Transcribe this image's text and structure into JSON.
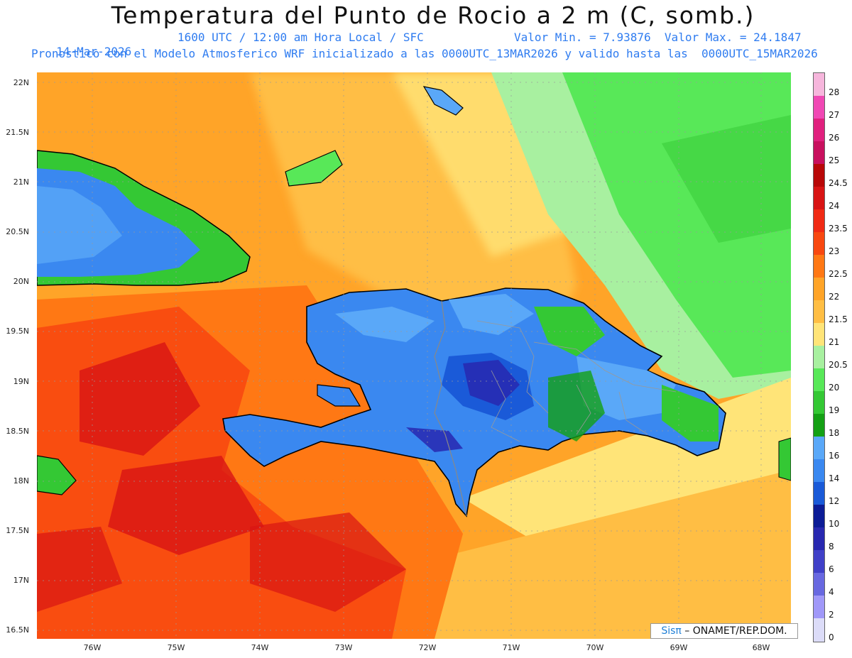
{
  "title": "Temperatura del Punto de Rocio a 2 m (C, somb.)",
  "subtitle": {
    "date": "14-Mar-2026",
    "time": "1600 UTC / 12:00 am Hora Local / SFC",
    "minmax": "Valor Min. = 7.93876  Valor Max. = 24.1847",
    "model": "Pronostico con el Modelo Atmosferico WRF inicializado a las 0000UTC_13MAR2026 y valido hasta las  0000UTC_15MAR2026"
  },
  "axes": {
    "y_labels": [
      "22N",
      "21.5N",
      "21N",
      "20.5N",
      "20N",
      "19.5N",
      "19N",
      "18.5N",
      "18N",
      "17.5N",
      "17N",
      "16.5N"
    ],
    "x_labels": [
      "76W",
      "75W",
      "74W",
      "73W",
      "72W",
      "71W",
      "70W",
      "69W",
      "68W"
    ]
  },
  "colorbar": {
    "labels": [
      "28",
      "27",
      "26",
      "25",
      "24.5",
      "24",
      "23.5",
      "23",
      "22.5",
      "22",
      "21.5",
      "21",
      "20.5",
      "20",
      "19",
      "18",
      "16",
      "14",
      "12",
      "10",
      "8",
      "6",
      "4",
      "2",
      "0"
    ],
    "colors": [
      "#f6b6dc",
      "#f048b4",
      "#e0207e",
      "#c8105e",
      "#b80808",
      "#d81414",
      "#f02a14",
      "#f84810",
      "#ff7814",
      "#ffa428",
      "#ffbe44",
      "#ffe478",
      "#a8f0a0",
      "#58e858",
      "#34c834",
      "#14a014",
      "#5aa8f8",
      "#3a88f0",
      "#1a5ad8",
      "#0c1c96",
      "#2828b0",
      "#4040c8",
      "#6868e0",
      "#a098f8",
      "#dcdcf8"
    ]
  },
  "credit": {
    "logo": "Sisπ",
    "text": " – ONAMET/REP.DOM."
  }
}
